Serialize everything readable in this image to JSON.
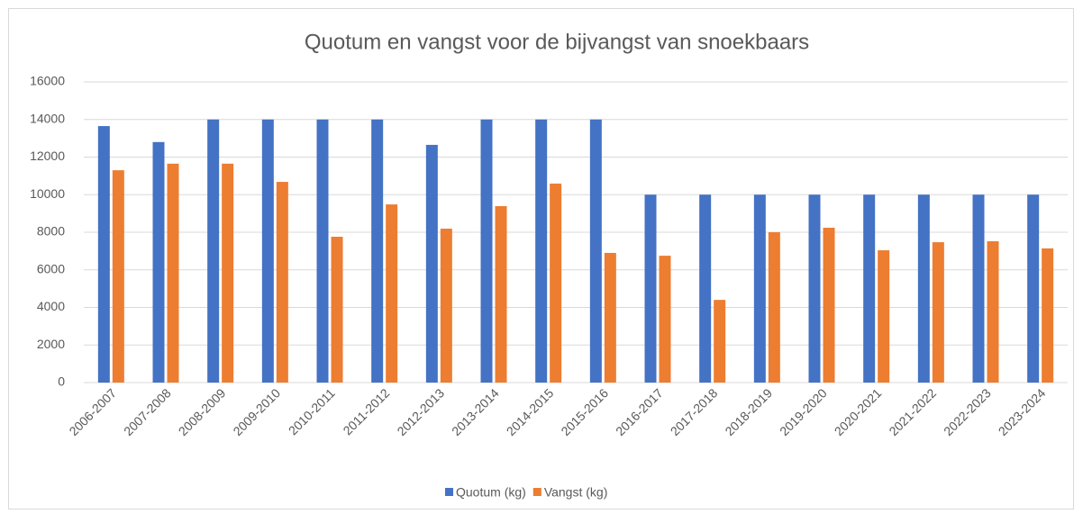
{
  "chart_data": {
    "type": "bar",
    "title": "Quotum en vangst voor de bijvangst van snoekbaars",
    "categories": [
      "2006-2007",
      "2007-2008",
      "2008-2009",
      "2009-2010",
      "2010-2011",
      "2011-2012",
      "2012-2013",
      "2013-2014",
      "2014-2015",
      "2015-2016",
      "2016-2017",
      "2017-2018",
      "2018-2019",
      "2019-2020",
      "2020-2021",
      "2021-2022",
      "2022-2023",
      "2023-2024"
    ],
    "series": [
      {
        "name": "Quotum (kg)",
        "color": "#4472c4",
        "values": [
          13650,
          12800,
          14000,
          14000,
          14000,
          14000,
          12650,
          14000,
          14000,
          14000,
          10000,
          10000,
          10000,
          10000,
          10000,
          10000,
          10000,
          10000
        ]
      },
      {
        "name": "Vangst (kg)",
        "color": "#ed7d31",
        "values": [
          11300,
          11650,
          11650,
          10680,
          7760,
          9480,
          8190,
          9390,
          10590,
          6900,
          6750,
          4400,
          8000,
          8240,
          7040,
          7470,
          7520,
          7140
        ]
      }
    ],
    "ylim": [
      0,
      16000
    ],
    "yticks": [
      0,
      2000,
      4000,
      6000,
      8000,
      10000,
      12000,
      14000,
      16000
    ],
    "grid": true,
    "legend": "bottom"
  }
}
